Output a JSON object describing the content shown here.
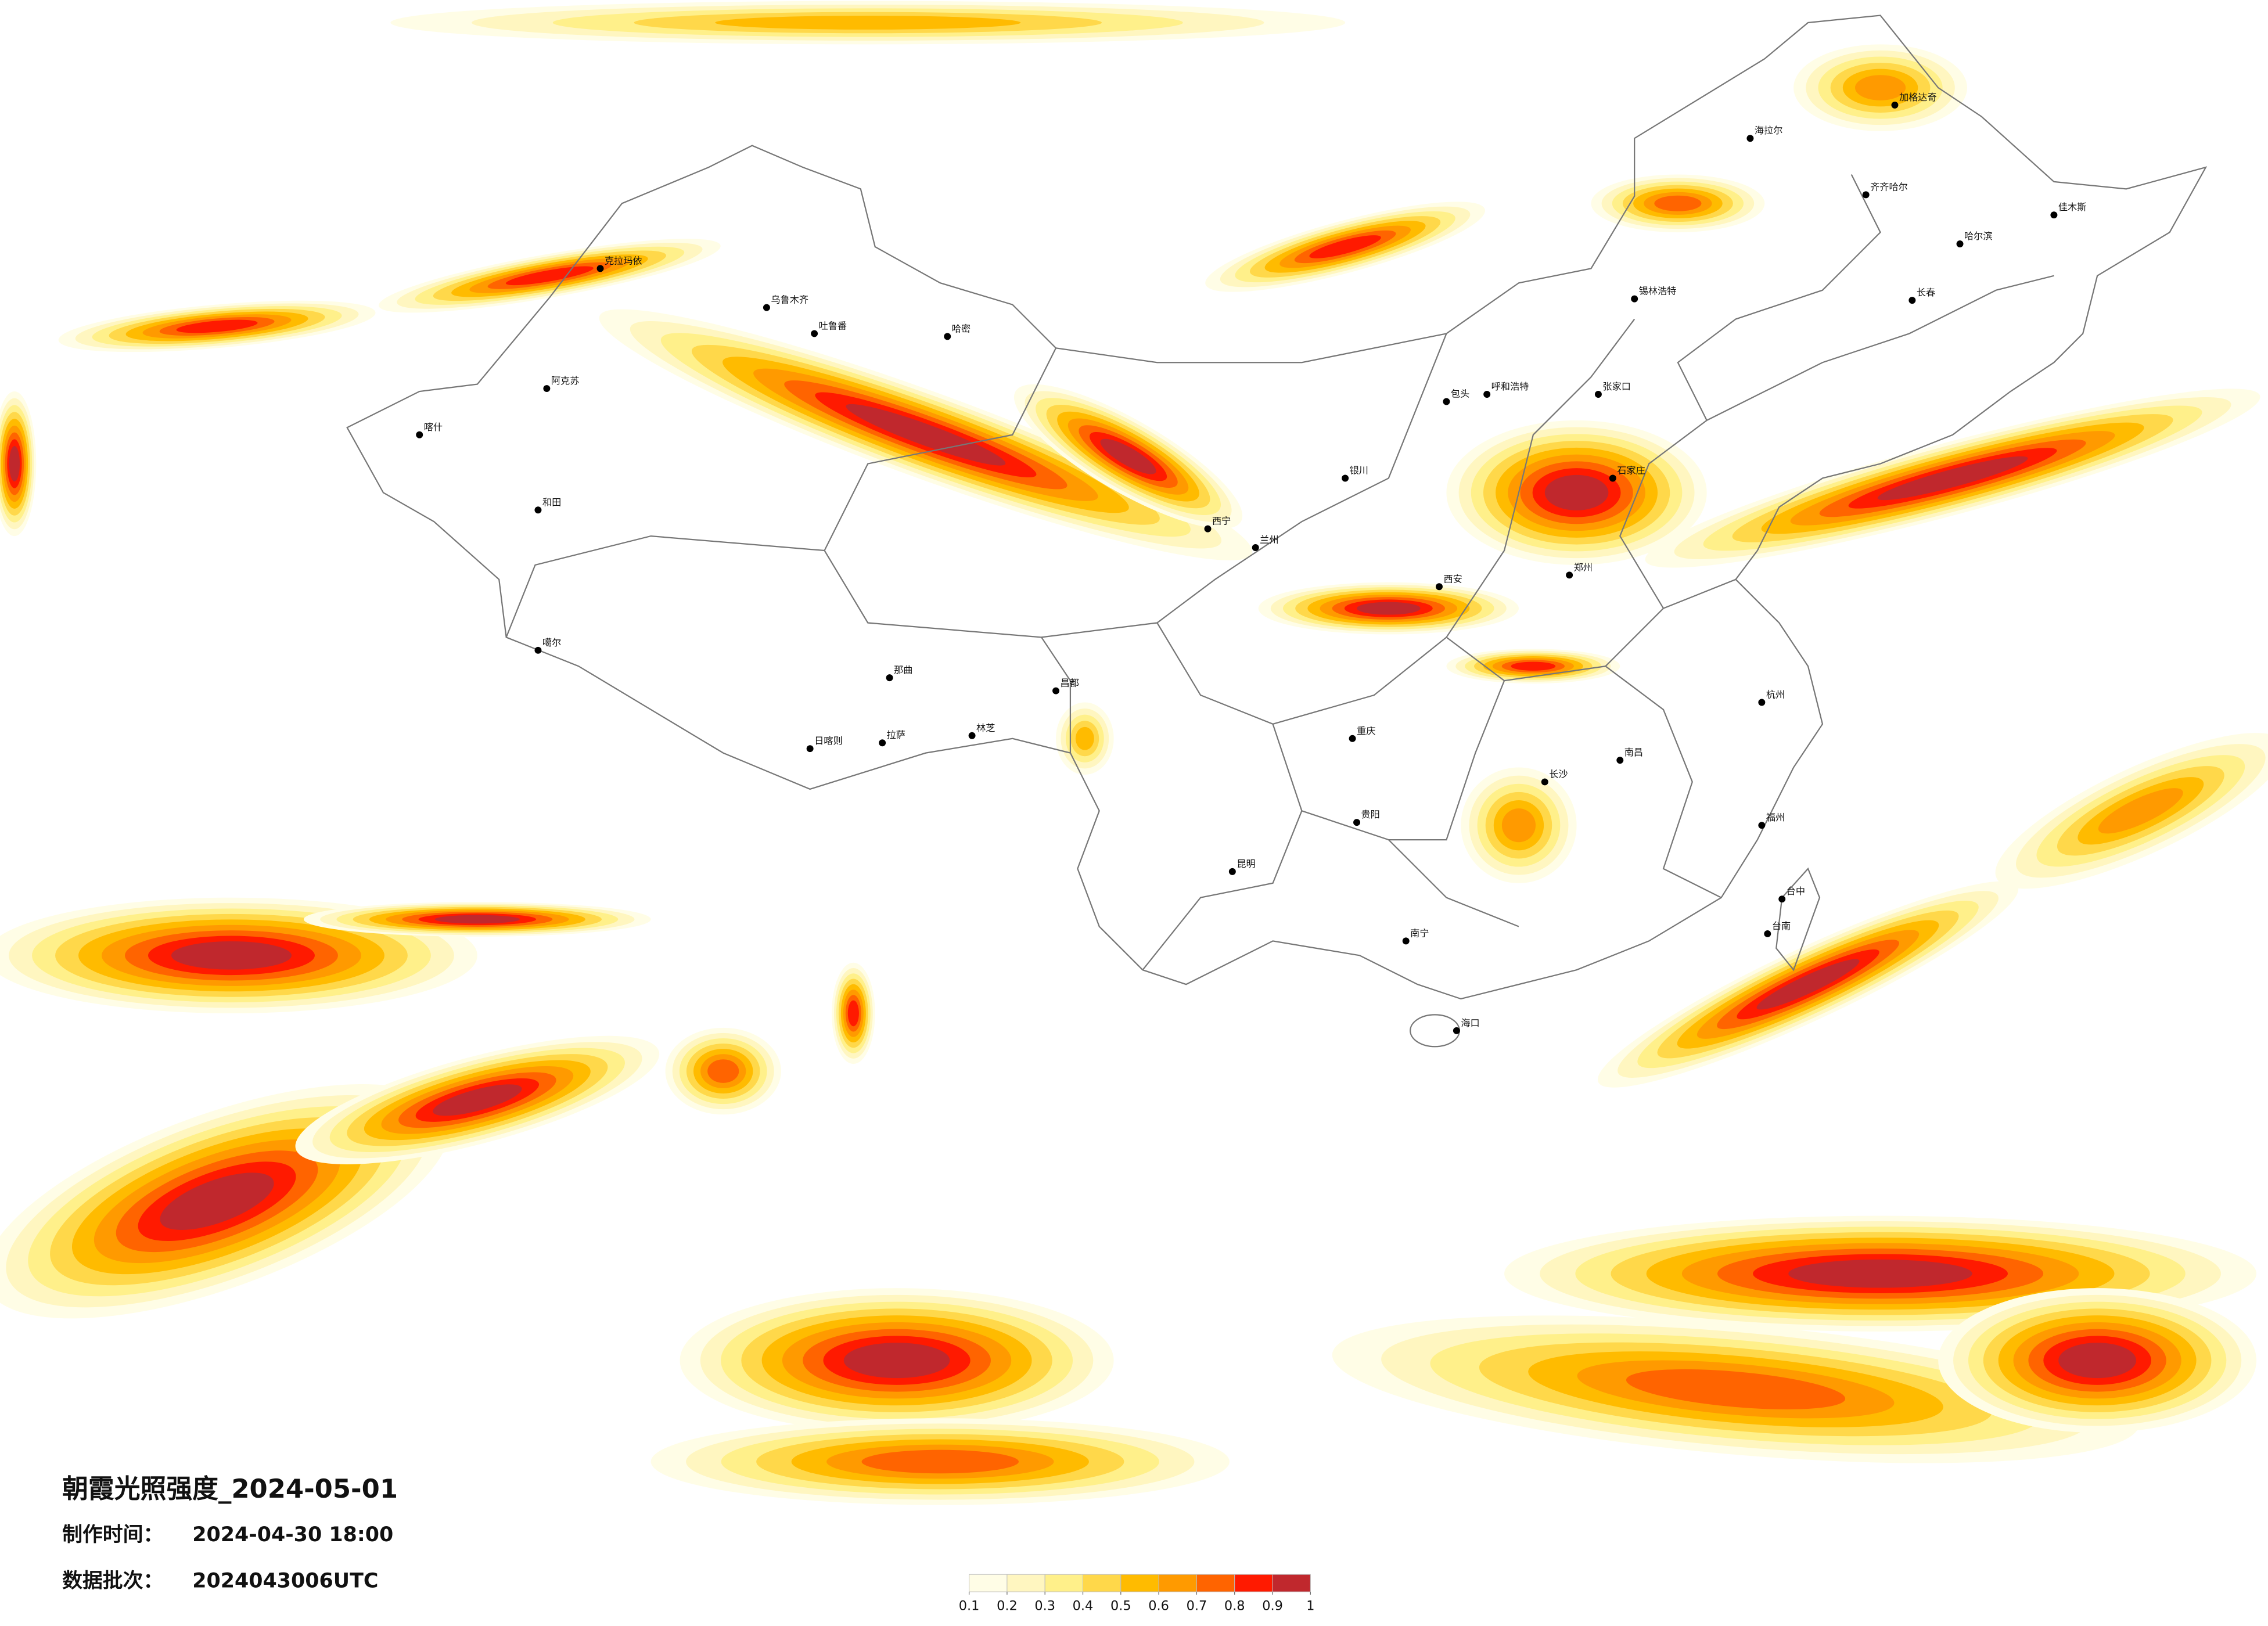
{
  "title": "朝霞光照强度_2024-05-01",
  "made_label": "制作时间：",
  "made_time": "2024-04-30 18:00",
  "batch_label": "数据批次：",
  "batch": "2024043006UTC",
  "legend": {
    "ticks": [
      0.1,
      0.2,
      0.3,
      0.4,
      0.5,
      0.6,
      0.7,
      0.8,
      0.9,
      1
    ],
    "colors": [
      "#fffde6",
      "#fff6c0",
      "#fff08a",
      "#ffd84a",
      "#ffbb00",
      "#ff9a00",
      "#ff6400",
      "#ff1a00",
      "#c0282d"
    ]
  },
  "cities": [
    "乌鲁木齐",
    "吐鲁番",
    "哈密",
    "克拉玛依",
    "阿克苏",
    "喀什",
    "和田",
    "噶尔",
    "日喀则",
    "拉萨",
    "那曲",
    "林芝",
    "昌都",
    "西宁",
    "兰州",
    "银川",
    "包头",
    "呼和浩特",
    "锡林浩特",
    "张家口",
    "石家庄",
    "郑州",
    "西安",
    "重庆",
    "贵阳",
    "昆明",
    "南宁",
    "海口",
    "长沙",
    "南昌",
    "杭州",
    "福州",
    "台中",
    "台南",
    "哈尔滨",
    "长春",
    "齐齐哈尔",
    "海拉尔",
    "加格达奇",
    "佳木斯"
  ]
}
